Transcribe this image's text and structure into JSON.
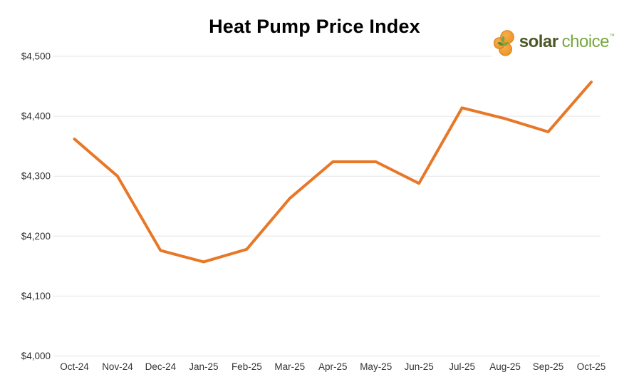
{
  "page": {
    "background": "#ffffff"
  },
  "header": {
    "title": "Heat Pump Price Index"
  },
  "logo": {
    "brand_primary": "solar",
    "brand_secondary": "choice",
    "trademark": "™",
    "colors": {
      "circle_fill": "#F09B33",
      "circle_fill_light": "#F6AE4B",
      "circle_stroke": "#D87F16",
      "leaf_green": "#79A63E",
      "leaf_green_dark": "#5E8A31",
      "text_primary": "#4A5726",
      "text_secondary": "#76A83E"
    }
  },
  "chart_data": {
    "type": "line",
    "title": "Heat Pump Price Index",
    "xlabel": "",
    "ylabel": "",
    "categories": [
      "Oct-24",
      "Nov-24",
      "Dec-24",
      "Jan-25",
      "Feb-25",
      "Mar-25",
      "Apr-25",
      "May-25",
      "Jun-25",
      "Jul-25",
      "Aug-25",
      "Sep-25",
      "Oct-25"
    ],
    "series": [
      {
        "name": "Heat Pump Price Index ($)",
        "values": [
          4362,
          4300,
          4176,
          4157,
          4178,
          4263,
          4324,
          4324,
          4288,
          4414,
          4396,
          4374,
          4457
        ]
      }
    ],
    "ylim": [
      4000,
      4500
    ],
    "yticks": [
      {
        "value": 4500,
        "label": "$4,500"
      },
      {
        "value": 4400,
        "label": "$4,400"
      },
      {
        "value": 4300,
        "label": "$4,300"
      },
      {
        "value": 4200,
        "label": "$4,200"
      },
      {
        "value": 4100,
        "label": "$4,100"
      },
      {
        "value": 4000,
        "label": "$4,000"
      }
    ],
    "grid": "horizontal",
    "legend": "none",
    "line_color": "#E87727",
    "grid_color": "#E6E6E6",
    "axis_label_color": "#333333"
  }
}
